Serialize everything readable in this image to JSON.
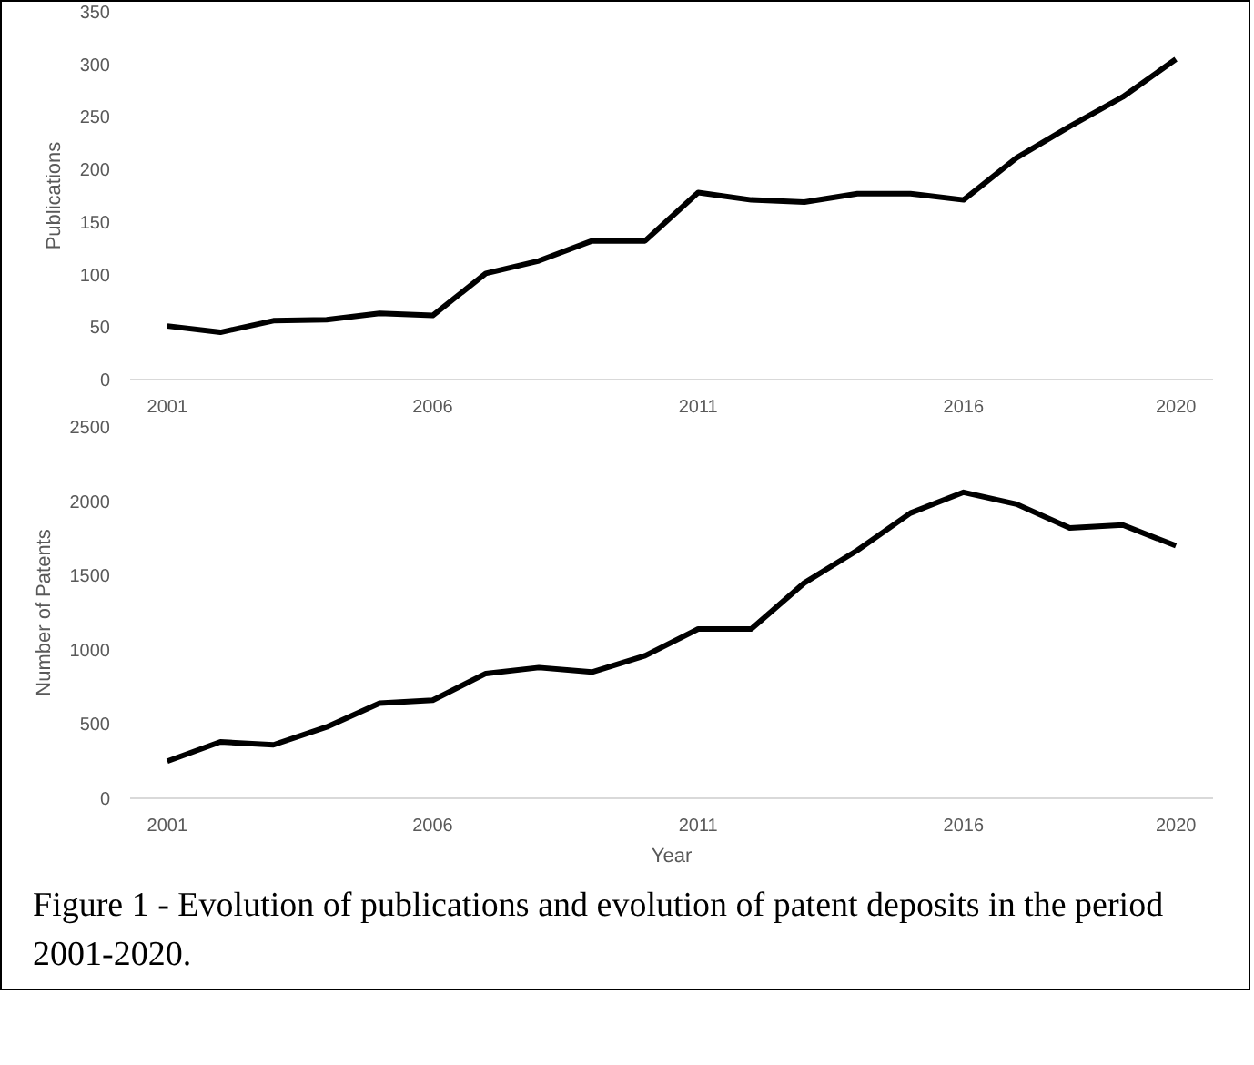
{
  "chart_data": [
    {
      "type": "line",
      "ylabel": "Publications",
      "x": [
        2001,
        2002,
        2003,
        2004,
        2005,
        2006,
        2007,
        2008,
        2009,
        2010,
        2011,
        2012,
        2013,
        2014,
        2015,
        2016,
        2017,
        2018,
        2019,
        2020
      ],
      "xlim": [
        2000.3,
        2020.7
      ],
      "xticks": [
        2001,
        2006,
        2011,
        2016,
        2020
      ],
      "ylim": [
        0,
        350
      ],
      "yticks": [
        0,
        50,
        100,
        150,
        200,
        250,
        300,
        350
      ],
      "grid": false,
      "series": [
        {
          "color": "#000000",
          "values": [
            51,
            45,
            56,
            57,
            63,
            61,
            101,
            113,
            132,
            132,
            178,
            171,
            169,
            177,
            177,
            171,
            211,
            241,
            269,
            305
          ]
        }
      ]
    },
    {
      "type": "line",
      "ylabel": "Number of Patents",
      "xlabel": "Year",
      "x": [
        2001,
        2002,
        2003,
        2004,
        2005,
        2006,
        2007,
        2008,
        2009,
        2010,
        2011,
        2012,
        2013,
        2014,
        2015,
        2016,
        2017,
        2018,
        2019,
        2020
      ],
      "xlim": [
        2000.3,
        2020.7
      ],
      "xticks": [
        2001,
        2006,
        2011,
        2016,
        2020
      ],
      "ylim": [
        0,
        2500
      ],
      "yticks": [
        0,
        500,
        1000,
        1500,
        2000,
        2500
      ],
      "grid": false,
      "annotations": [
        "Figure 1 - Evolution of publications and evolution of patent deposits in the period 2001-2020."
      ],
      "series": [
        {
          "color": "#000000",
          "values": [
            250,
            380,
            360,
            480,
            640,
            660,
            840,
            880,
            850,
            960,
            1140,
            1140,
            1450,
            1670,
            1920,
            2060,
            1980,
            1820,
            1840,
            1700
          ]
        }
      ]
    }
  ]
}
